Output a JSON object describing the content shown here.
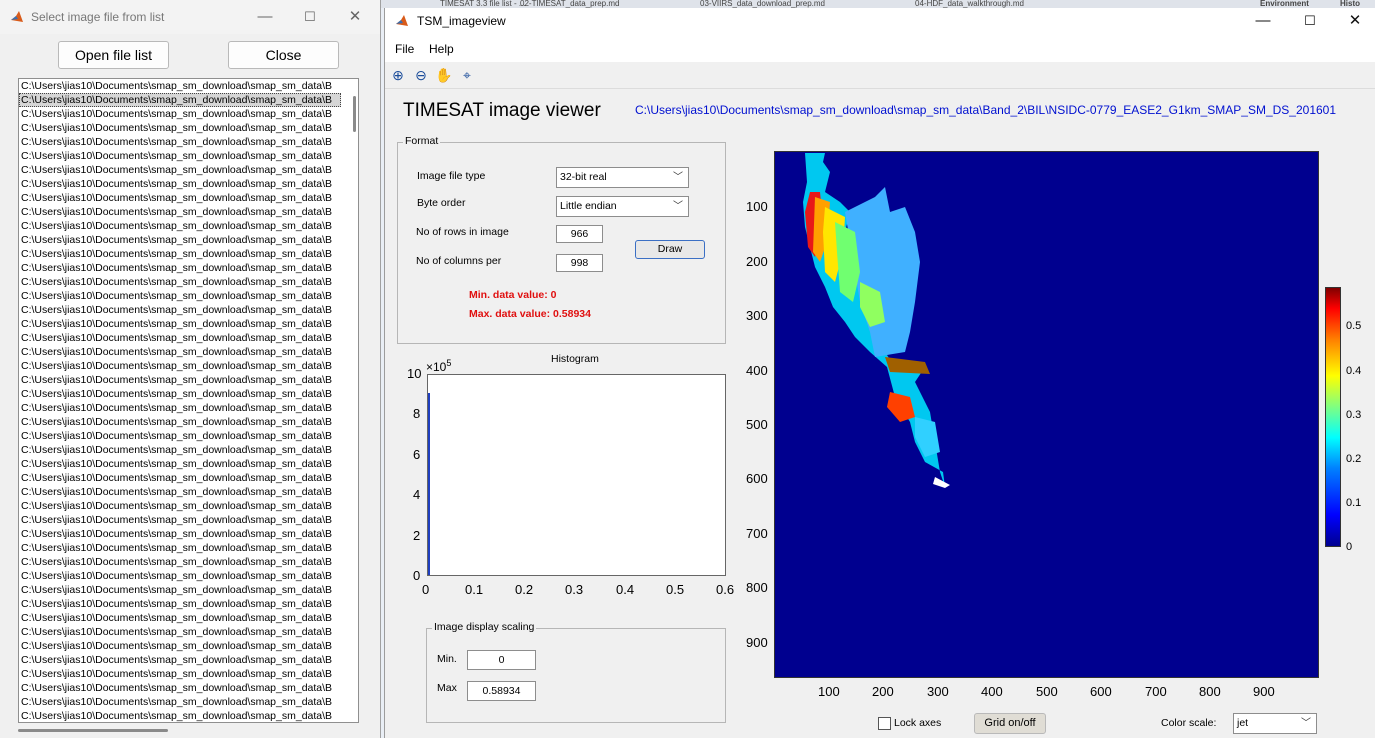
{
  "background_tabs": [
    "TIMESAT 3.3 file list - ...",
    "02-TIMESAT_data_prep.md",
    "03-VIIRS_data_download_prep.md",
    "04-HDF_data_walkthrough.md",
    "Environment",
    "Histo"
  ],
  "left_window": {
    "title": "Select image file from list",
    "open_button": "Open file list",
    "close_button": "Close",
    "files": [
      "C:\\Users\\jias10\\Documents\\smap_sm_download\\smap_sm_data\\B",
      "C:\\Users\\jias10\\Documents\\smap_sm_download\\smap_sm_data\\B",
      "C:\\Users\\jias10\\Documents\\smap_sm_download\\smap_sm_data\\B",
      "C:\\Users\\jias10\\Documents\\smap_sm_download\\smap_sm_data\\B",
      "C:\\Users\\jias10\\Documents\\smap_sm_download\\smap_sm_data\\B",
      "C:\\Users\\jias10\\Documents\\smap_sm_download\\smap_sm_data\\B",
      "C:\\Users\\jias10\\Documents\\smap_sm_download\\smap_sm_data\\B",
      "C:\\Users\\jias10\\Documents\\smap_sm_download\\smap_sm_data\\B",
      "C:\\Users\\jias10\\Documents\\smap_sm_download\\smap_sm_data\\B",
      "C:\\Users\\jias10\\Documents\\smap_sm_download\\smap_sm_data\\B",
      "C:\\Users\\jias10\\Documents\\smap_sm_download\\smap_sm_data\\B",
      "C:\\Users\\jias10\\Documents\\smap_sm_download\\smap_sm_data\\B",
      "C:\\Users\\jias10\\Documents\\smap_sm_download\\smap_sm_data\\B",
      "C:\\Users\\jias10\\Documents\\smap_sm_download\\smap_sm_data\\B",
      "C:\\Users\\jias10\\Documents\\smap_sm_download\\smap_sm_data\\B",
      "C:\\Users\\jias10\\Documents\\smap_sm_download\\smap_sm_data\\B",
      "C:\\Users\\jias10\\Documents\\smap_sm_download\\smap_sm_data\\B",
      "C:\\Users\\jias10\\Documents\\smap_sm_download\\smap_sm_data\\B",
      "C:\\Users\\jias10\\Documents\\smap_sm_download\\smap_sm_data\\B",
      "C:\\Users\\jias10\\Documents\\smap_sm_download\\smap_sm_data\\B",
      "C:\\Users\\jias10\\Documents\\smap_sm_download\\smap_sm_data\\B",
      "C:\\Users\\jias10\\Documents\\smap_sm_download\\smap_sm_data\\B",
      "C:\\Users\\jias10\\Documents\\smap_sm_download\\smap_sm_data\\B",
      "C:\\Users\\jias10\\Documents\\smap_sm_download\\smap_sm_data\\B",
      "C:\\Users\\jias10\\Documents\\smap_sm_download\\smap_sm_data\\B",
      "C:\\Users\\jias10\\Documents\\smap_sm_download\\smap_sm_data\\B",
      "C:\\Users\\jias10\\Documents\\smap_sm_download\\smap_sm_data\\B",
      "C:\\Users\\jias10\\Documents\\smap_sm_download\\smap_sm_data\\B",
      "C:\\Users\\jias10\\Documents\\smap_sm_download\\smap_sm_data\\B",
      "C:\\Users\\jias10\\Documents\\smap_sm_download\\smap_sm_data\\B",
      "C:\\Users\\jias10\\Documents\\smap_sm_download\\smap_sm_data\\B",
      "C:\\Users\\jias10\\Documents\\smap_sm_download\\smap_sm_data\\B",
      "C:\\Users\\jias10\\Documents\\smap_sm_download\\smap_sm_data\\B",
      "C:\\Users\\jias10\\Documents\\smap_sm_download\\smap_sm_data\\B",
      "C:\\Users\\jias10\\Documents\\smap_sm_download\\smap_sm_data\\B",
      "C:\\Users\\jias10\\Documents\\smap_sm_download\\smap_sm_data\\B",
      "C:\\Users\\jias10\\Documents\\smap_sm_download\\smap_sm_data\\B",
      "C:\\Users\\jias10\\Documents\\smap_sm_download\\smap_sm_data\\B",
      "C:\\Users\\jias10\\Documents\\smap_sm_download\\smap_sm_data\\B",
      "C:\\Users\\jias10\\Documents\\smap_sm_download\\smap_sm_data\\B",
      "C:\\Users\\jias10\\Documents\\smap_sm_download\\smap_sm_data\\B",
      "C:\\Users\\jias10\\Documents\\smap_sm_download\\smap_sm_data\\B",
      "C:\\Users\\jias10\\Documents\\smap_sm_download\\smap_sm_data\\B",
      "C:\\Users\\jias10\\Documents\\smap_sm_download\\smap_sm_data\\B",
      "C:\\Users\\jias10\\Documents\\smap_sm_download\\smap_sm_data\\B",
      "C:\\Users\\jias10\\Documents\\smap_sm_download\\smap_sm_data\\B"
    ],
    "selected_index": 1
  },
  "main_window": {
    "title": "TSM_imageview",
    "menus": [
      "File",
      "Help"
    ],
    "tools": [
      "zoom-in-icon",
      "zoom-out-icon",
      "pan-icon",
      "data-cursor-icon"
    ],
    "heading": "TIMESAT image viewer",
    "file_path": "C:\\Users\\jias10\\Documents\\smap_sm_download\\smap_sm_data\\Band_2\\BIL\\NSIDC-0779_EASE2_G1km_SMAP_SM_DS_201601",
    "format": {
      "title": "Format",
      "file_type_label": "Image file type",
      "file_type_value": "32-bit real",
      "byte_order_label": "Byte order",
      "byte_order_value": "Little endian",
      "rows_label": "No of rows in image",
      "rows_value": "966",
      "cols_label": "No of columns per",
      "cols_value": "998",
      "draw_button": "Draw",
      "min_value_text": "Min. data value: 0",
      "max_value_text": "Max. data value: 0.58934"
    },
    "histogram": {
      "title": "Histogram",
      "exponent": "×10",
      "exponent_power": "5",
      "y_ticks": [
        "10",
        "8",
        "6",
        "4",
        "2",
        "0"
      ],
      "x_ticks": [
        "0",
        "0.1",
        "0.2",
        "0.3",
        "0.4",
        "0.5",
        "0.6"
      ]
    },
    "scaling": {
      "title": "Image display scaling",
      "min_label": "Min.",
      "min_value": "0",
      "max_label": "Max",
      "max_value": "0.58934"
    },
    "image": {
      "y_ticks": [
        "100",
        "200",
        "300",
        "400",
        "500",
        "600",
        "700",
        "800",
        "900"
      ],
      "x_ticks": [
        "100",
        "200",
        "300",
        "400",
        "500",
        "600",
        "700",
        "800",
        "900"
      ],
      "colorbar_ticks": [
        "0.5",
        "0.4",
        "0.3",
        "0.2",
        "0.1",
        "0"
      ]
    },
    "bottom": {
      "lock_axes": "Lock axes",
      "grid_button": "Grid on/off",
      "color_scale_label": "Color scale:",
      "color_scale_value": "jet"
    }
  },
  "colors": {
    "path_blue": "#0010d0",
    "red_text": "#e01010",
    "image_bg": "#00008f"
  }
}
